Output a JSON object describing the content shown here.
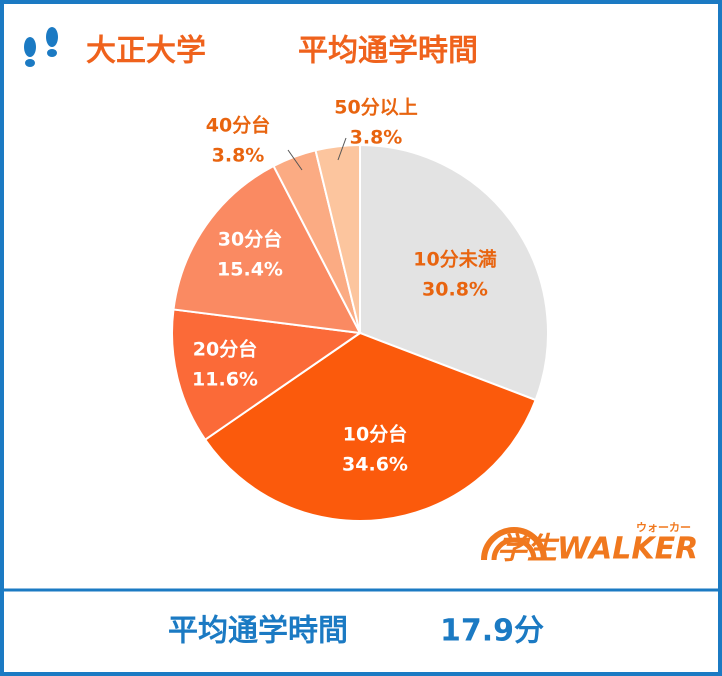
{
  "chart_data": {
    "type": "pie",
    "university": "大正大学",
    "title": "平均通学時間",
    "categories": [
      "10分未満",
      "10分台",
      "20分台",
      "30分台",
      "40分台",
      "50分以上"
    ],
    "values": [
      30.8,
      34.6,
      11.6,
      15.4,
      3.8,
      3.8
    ],
    "value_labels": [
      "30.8%",
      "34.6%",
      "11.6%",
      "15.4%",
      "3.8%",
      "3.8%"
    ],
    "colors": [
      "#e3e3e3",
      "#fb5a0c",
      "#fb6a38",
      "#fa8a62",
      "#fbab83",
      "#fcc59e"
    ],
    "footer": {
      "label": "平均通学時間",
      "value": "17.9分"
    },
    "logo": {
      "main": "学生WALKER",
      "kana": "ウォーカー"
    }
  }
}
